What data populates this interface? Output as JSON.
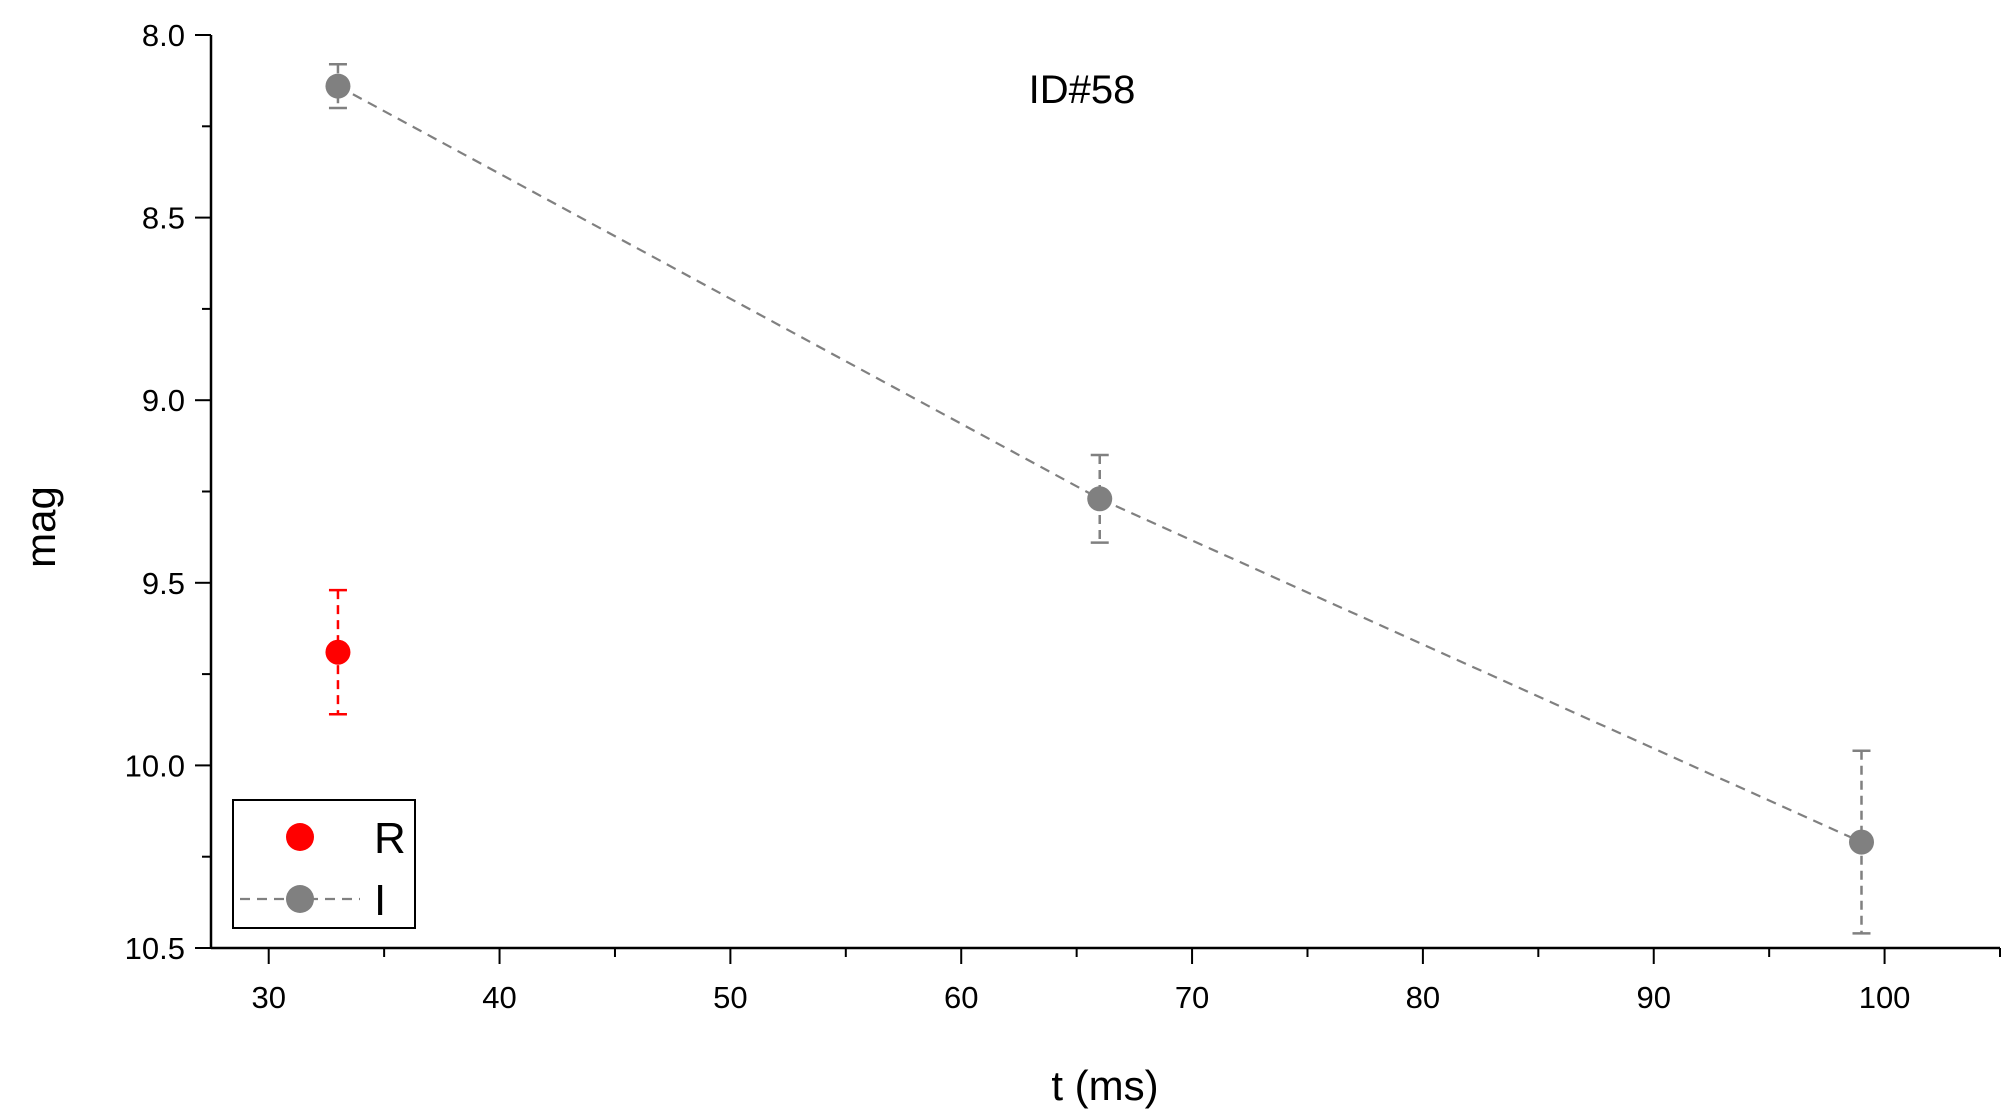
{
  "chart_data": {
    "type": "scatter",
    "title": "ID#58",
    "xlabel": "t (ms)",
    "ylabel": "mag",
    "xlim": [
      27.5,
      105
    ],
    "ylim": [
      8.0,
      10.5
    ],
    "y_inverted": true,
    "x_ticks": [
      30,
      40,
      50,
      60,
      70,
      80,
      90,
      100
    ],
    "x_tick_labels": [
      "30",
      "40",
      "50",
      "60",
      "70",
      "80",
      "90",
      "100"
    ],
    "y_ticks": [
      8.0,
      8.5,
      9.0,
      9.5,
      10.0,
      10.5
    ],
    "y_tick_labels": [
      "8.0",
      "8.5",
      "9.0",
      "9.5",
      "10.0",
      "10.5"
    ],
    "grid": false,
    "legend_position": "bottom-left",
    "series": [
      {
        "name": "R",
        "color": "#ff0000",
        "line": "none",
        "points": [
          {
            "x": 33,
            "y": 9.69,
            "err_low": 9.52,
            "err_high": 9.86
          }
        ]
      },
      {
        "name": "I",
        "color": "#808080",
        "line": "dashed",
        "points": [
          {
            "x": 33,
            "y": 8.14,
            "err_low": 8.08,
            "err_high": 8.2
          },
          {
            "x": 66,
            "y": 9.27,
            "err_low": 9.15,
            "err_high": 9.39
          },
          {
            "x": 99,
            "y": 10.21,
            "err_low": 9.96,
            "err_high": 10.46
          }
        ]
      }
    ]
  }
}
